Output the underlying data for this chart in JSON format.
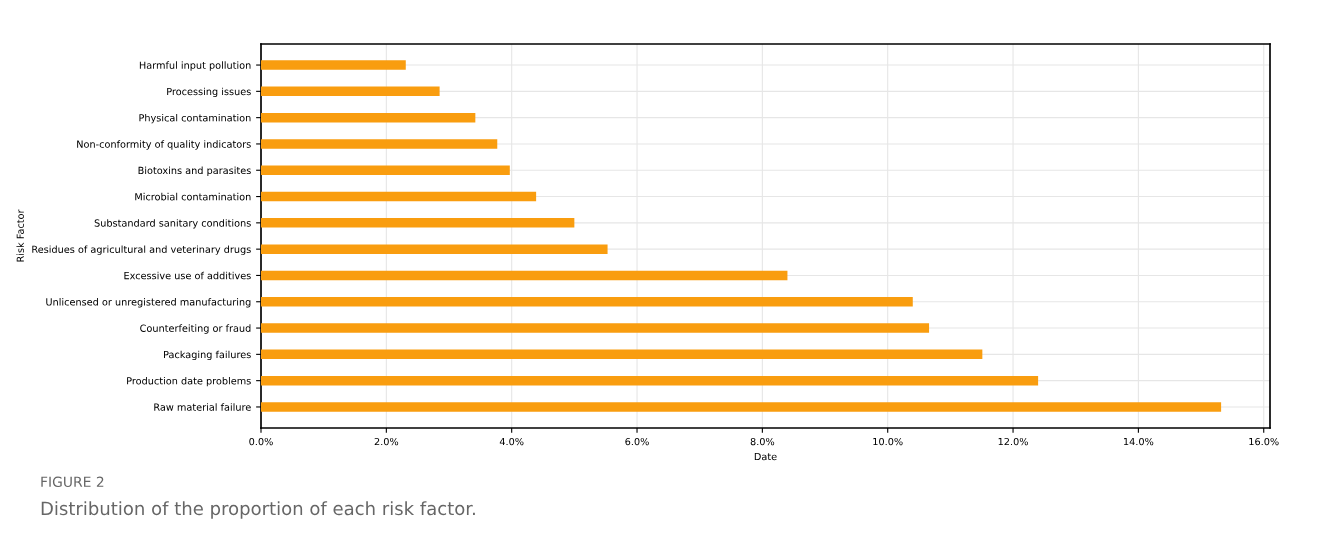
{
  "chart_data": {
    "type": "bar",
    "orientation": "horizontal",
    "xlabel": "Date",
    "ylabel": "Risk Factor",
    "categories": [
      "Harmful input pollution",
      "Processing issues",
      "Physical contamination",
      "Non-conformity of quality indicators",
      "Biotoxins and parasites",
      "Microbial contamination",
      "Substandard sanitary conditions",
      "Residues of agricultural and veterinary drugs",
      "Excessive use of additives",
      "Unlicensed or unregistered manufacturing",
      "Counterfeiting or fraud",
      "Packaging failures",
      "Production date problems",
      "Raw material failure"
    ],
    "values": [
      2.31,
      2.85,
      3.42,
      3.77,
      3.97,
      4.39,
      5.0,
      5.53,
      8.4,
      10.4,
      10.66,
      11.51,
      12.4,
      15.32
    ],
    "color": "#f99d0f",
    "xlim": [
      0,
      16.1
    ],
    "xticks": [
      {
        "value": 0,
        "label": "0.0%"
      },
      {
        "value": 2,
        "label": "2.0%"
      },
      {
        "value": 4,
        "label": "4.0%"
      },
      {
        "value": 6,
        "label": "6.0%"
      },
      {
        "value": 8,
        "label": "8.0%"
      },
      {
        "value": 10,
        "label": "10.0%"
      },
      {
        "value": 12,
        "label": "12.0%"
      },
      {
        "value": 14,
        "label": "14.0%"
      },
      {
        "value": 16,
        "label": "16.0%"
      }
    ],
    "grid": true,
    "annotations": [
      "FIGURE 2",
      "Distribution of the proportion of each risk factor."
    ]
  }
}
